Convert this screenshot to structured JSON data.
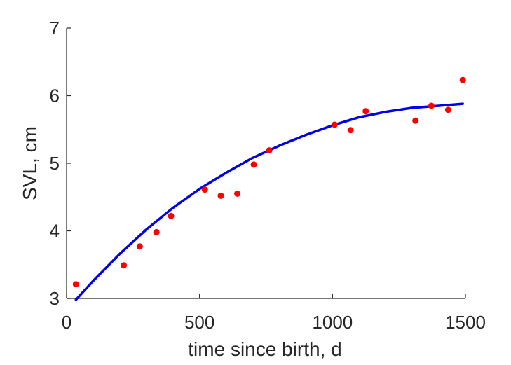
{
  "chart_data": {
    "type": "scatter",
    "title": "",
    "xlabel": "time since birth, d",
    "ylabel": "SVL, cm",
    "xlim": [
      0,
      1500
    ],
    "ylim": [
      3,
      7
    ],
    "xticks": [
      0,
      500,
      1000,
      1500
    ],
    "yticks": [
      3,
      4,
      5,
      6,
      7
    ],
    "grid": false,
    "colors": {
      "points": "#ff0000",
      "fit": "#0000e6",
      "axis": "#262626"
    },
    "series": [
      {
        "type": "scatter",
        "x": [
          35,
          215,
          275,
          338,
          393,
          520,
          580,
          642,
          704,
          762,
          1008,
          1068,
          1125,
          1312,
          1372,
          1435,
          1490
        ],
        "y": [
          3.21,
          3.49,
          3.77,
          3.98,
          4.22,
          4.61,
          4.52,
          4.55,
          4.98,
          5.19,
          5.57,
          5.49,
          5.77,
          5.63,
          5.85,
          5.79,
          6.23
        ]
      },
      {
        "type": "line",
        "x": [
          35,
          100,
          200,
          300,
          400,
          500,
          600,
          700,
          800,
          900,
          1000,
          1100,
          1200,
          1300,
          1400,
          1490
        ],
        "y": [
          2.98,
          3.26,
          3.66,
          4.02,
          4.34,
          4.62,
          4.86,
          5.08,
          5.26,
          5.42,
          5.56,
          5.68,
          5.76,
          5.82,
          5.85,
          5.88
        ]
      }
    ]
  }
}
